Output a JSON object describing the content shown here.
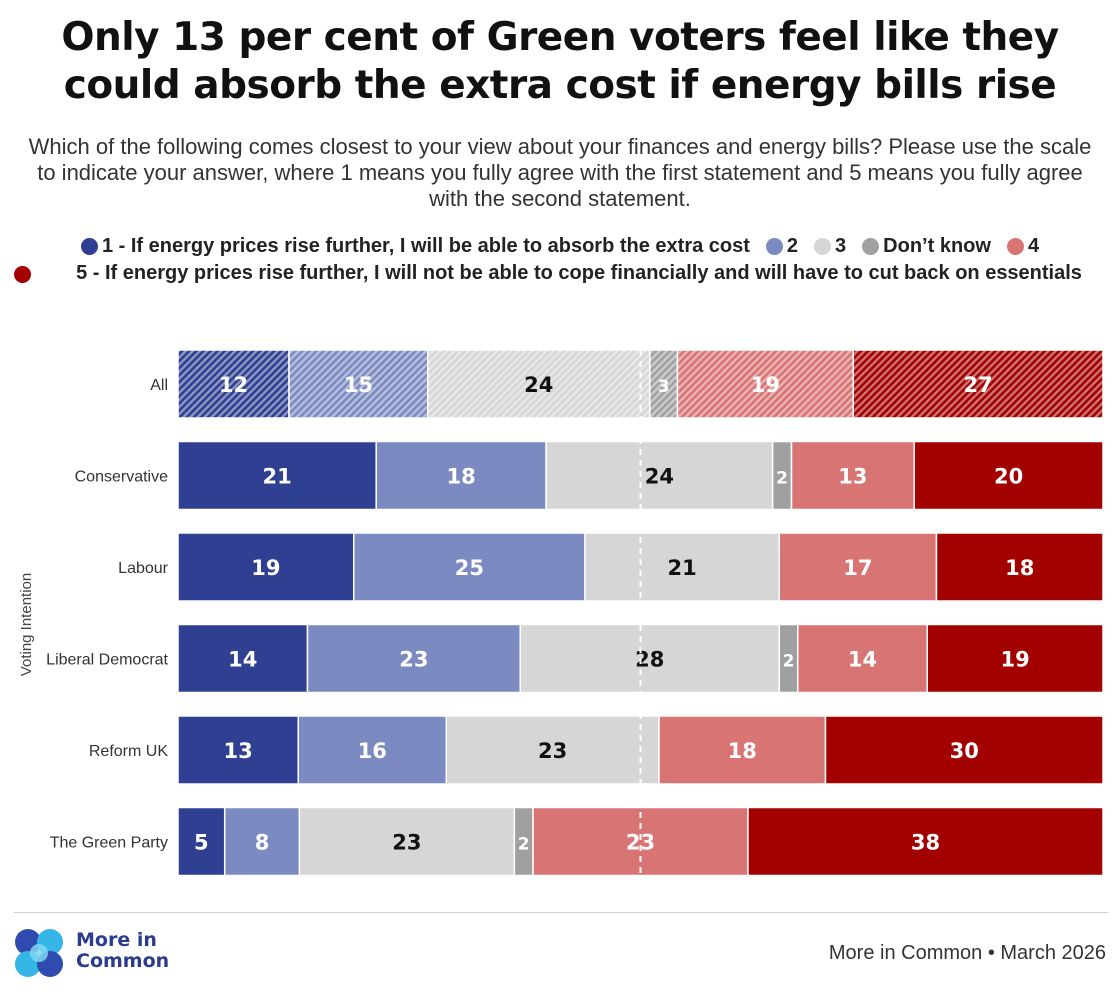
{
  "title": "Only 13 per cent of Green voters feel like they could absorb the extra cost if energy bills rise",
  "subtitle": "Which of the following comes closest to your view about your finances and energy bills? Please use the scale to indicate your answer, where 1 means you fully agree with the first statement and 5 means you fully agree with the second statement.",
  "legend": [
    {
      "label": "1 - If energy prices rise further, I will be able to absorb the extra cost",
      "color": "#2f3f91"
    },
    {
      "label": "2",
      "color": "#7b8bc1"
    },
    {
      "label": "3",
      "color": "#d6d6d6"
    },
    {
      "label": "Don’t know",
      "color": "#a0a0a0"
    },
    {
      "label": "4",
      "color": "#d97474"
    },
    {
      "label": "5 - If energy prices rise further, I will not be able to cope financially and will have to cut back on essentials",
      "color": "#a30000"
    }
  ],
  "footer": {
    "logo_text_line1": "More in",
    "logo_text_line2": "Common",
    "source": "More in Common • March 2026"
  },
  "chart_data": {
    "type": "bar",
    "orientation": "horizontal",
    "stacked": true,
    "normalized": true,
    "ylabel": "Voting Intention",
    "categories": [
      "All",
      "Conservative",
      "Labour",
      "Liberal Democrat",
      "Reform UK",
      "The Green Party"
    ],
    "series": [
      {
        "name": "1 - If energy prices rise further, I will be able to absorb the extra cost",
        "color": "#2f3f91",
        "label_color": "#ffffff",
        "values": [
          12,
          21,
          19,
          14,
          13,
          5
        ]
      },
      {
        "name": "2",
        "color": "#7b8bc1",
        "label_color": "#ffffff",
        "values": [
          15,
          18,
          25,
          23,
          16,
          8
        ]
      },
      {
        "name": "3",
        "color": "#d6d6d6",
        "label_color": "#111111",
        "values": [
          24,
          24,
          21,
          28,
          23,
          23
        ]
      },
      {
        "name": "Don’t know",
        "color": "#a0a0a0",
        "label_color": "#ffffff",
        "values": [
          3,
          2,
          0,
          2,
          0,
          2
        ]
      },
      {
        "name": "4",
        "color": "#d97474",
        "label_color": "#ffffff",
        "values": [
          19,
          13,
          17,
          14,
          18,
          23
        ]
      },
      {
        "name": "5 - If energy prices rise further, I will not be able to cope financially and will have to cut back on essentials",
        "color": "#a30000",
        "label_color": "#ffffff",
        "values": [
          27,
          20,
          18,
          19,
          30,
          38
        ]
      }
    ],
    "hatched_categories": [
      "All"
    ],
    "midpoint_line": 50
  }
}
